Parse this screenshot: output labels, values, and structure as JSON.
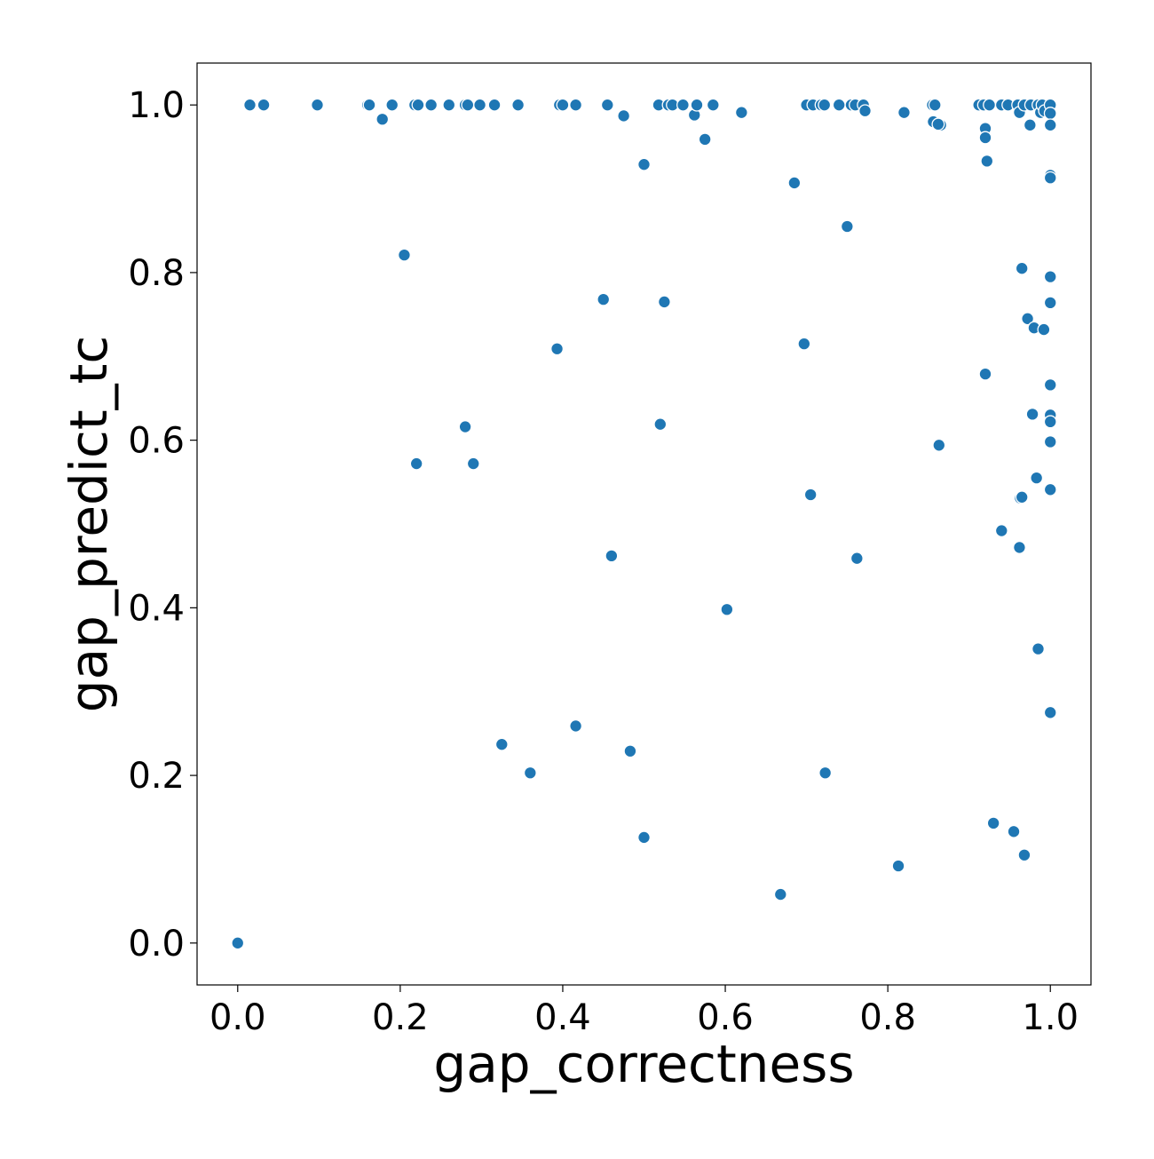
{
  "chart_data": {
    "type": "scatter",
    "xlabel": "gap_correctness",
    "ylabel": "gap_predict_tc",
    "xlim": [
      -0.05,
      1.05
    ],
    "ylim": [
      -0.05,
      1.05
    ],
    "xticks": [
      0.0,
      0.2,
      0.4,
      0.6,
      0.8,
      1.0
    ],
    "yticks": [
      0.0,
      0.2,
      0.4,
      0.6,
      0.8,
      1.0
    ],
    "xtick_labels": [
      "0.0",
      "0.2",
      "0.4",
      "0.6",
      "0.8",
      "1.0"
    ],
    "ytick_labels": [
      "0.0",
      "0.2",
      "0.4",
      "0.6",
      "0.8",
      "1.0"
    ],
    "grid": false,
    "marker_color": "#1f77b4",
    "series": [
      {
        "points": [
          [
            0.0,
            0.0
          ],
          [
            0.015,
            1.0
          ],
          [
            0.032,
            1.0
          ],
          [
            0.098,
            1.0
          ],
          [
            0.16,
            1.0
          ],
          [
            0.162,
            1.0
          ],
          [
            0.178,
            0.983
          ],
          [
            0.19,
            1.0
          ],
          [
            0.218,
            1.0
          ],
          [
            0.222,
            1.0
          ],
          [
            0.238,
            1.0
          ],
          [
            0.26,
            1.0
          ],
          [
            0.28,
            1.0
          ],
          [
            0.283,
            1.0
          ],
          [
            0.298,
            1.0
          ],
          [
            0.316,
            1.0
          ],
          [
            0.345,
            1.0
          ],
          [
            0.396,
            1.0
          ],
          [
            0.4,
            1.0
          ],
          [
            0.416,
            1.0
          ],
          [
            0.455,
            1.0
          ],
          [
            0.475,
            0.987
          ],
          [
            0.5,
            0.929
          ],
          [
            0.518,
            1.0
          ],
          [
            0.53,
            1.0
          ],
          [
            0.535,
            1.0
          ],
          [
            0.548,
            1.0
          ],
          [
            0.562,
            0.988
          ],
          [
            0.565,
            1.0
          ],
          [
            0.575,
            0.959
          ],
          [
            0.585,
            1.0
          ],
          [
            0.62,
            0.991
          ],
          [
            0.685,
            0.907
          ],
          [
            0.7,
            1.0
          ],
          [
            0.708,
            1.0
          ],
          [
            0.718,
            1.0
          ],
          [
            0.722,
            1.0
          ],
          [
            0.74,
            1.0
          ],
          [
            0.755,
            1.0
          ],
          [
            0.76,
            1.0
          ],
          [
            0.77,
            1.0
          ],
          [
            0.772,
            0.993
          ],
          [
            0.82,
            0.991
          ],
          [
            0.855,
            1.0
          ],
          [
            0.858,
            1.0
          ],
          [
            0.856,
            0.98
          ],
          [
            0.865,
            0.976
          ],
          [
            0.862,
            0.977
          ],
          [
            0.912,
            1.0
          ],
          [
            0.918,
            1.0
          ],
          [
            0.925,
            1.0
          ],
          [
            0.92,
            0.972
          ],
          [
            0.92,
            0.961
          ],
          [
            0.922,
            0.933
          ],
          [
            0.94,
            1.0
          ],
          [
            0.948,
            1.0
          ],
          [
            0.96,
            1.0
          ],
          [
            0.962,
            0.991
          ],
          [
            0.968,
            1.0
          ],
          [
            0.976,
            1.0
          ],
          [
            0.975,
            0.976
          ],
          [
            0.985,
            1.0
          ],
          [
            0.988,
            0.991
          ],
          [
            0.99,
            1.0
          ],
          [
            0.993,
            0.993
          ],
          [
            1.0,
            1.0
          ],
          [
            1.0,
            0.99
          ],
          [
            1.0,
            0.976
          ],
          [
            1.0,
            0.916
          ],
          [
            1.0,
            0.913
          ],
          [
            0.205,
            0.821
          ],
          [
            0.45,
            0.768
          ],
          [
            0.525,
            0.765
          ],
          [
            0.75,
            0.855
          ],
          [
            0.393,
            0.709
          ],
          [
            0.697,
            0.715
          ],
          [
            0.28,
            0.616
          ],
          [
            0.52,
            0.619
          ],
          [
            0.22,
            0.572
          ],
          [
            0.29,
            0.572
          ],
          [
            0.705,
            0.535
          ],
          [
            0.92,
            0.679
          ],
          [
            0.965,
            0.805
          ],
          [
            0.972,
            0.745
          ],
          [
            0.98,
            0.734
          ],
          [
            0.992,
            0.732
          ],
          [
            1.0,
            0.795
          ],
          [
            1.0,
            0.764
          ],
          [
            1.0,
            0.666
          ],
          [
            1.0,
            0.63
          ],
          [
            1.0,
            0.622
          ],
          [
            1.0,
            0.598
          ],
          [
            1.0,
            0.541
          ],
          [
            0.978,
            0.631
          ],
          [
            0.983,
            0.555
          ],
          [
            0.963,
            0.531
          ],
          [
            0.965,
            0.532
          ],
          [
            0.863,
            0.594
          ],
          [
            0.94,
            0.492
          ],
          [
            0.962,
            0.472
          ],
          [
            0.46,
            0.462
          ],
          [
            0.762,
            0.459
          ],
          [
            0.602,
            0.398
          ],
          [
            0.985,
            0.351
          ],
          [
            1.0,
            0.275
          ],
          [
            0.416,
            0.259
          ],
          [
            0.325,
            0.237
          ],
          [
            0.483,
            0.229
          ],
          [
            0.36,
            0.203
          ],
          [
            0.723,
            0.203
          ],
          [
            0.93,
            0.143
          ],
          [
            0.955,
            0.133
          ],
          [
            0.968,
            0.105
          ],
          [
            0.5,
            0.126
          ],
          [
            0.813,
            0.092
          ],
          [
            0.668,
            0.058
          ]
        ]
      }
    ]
  }
}
